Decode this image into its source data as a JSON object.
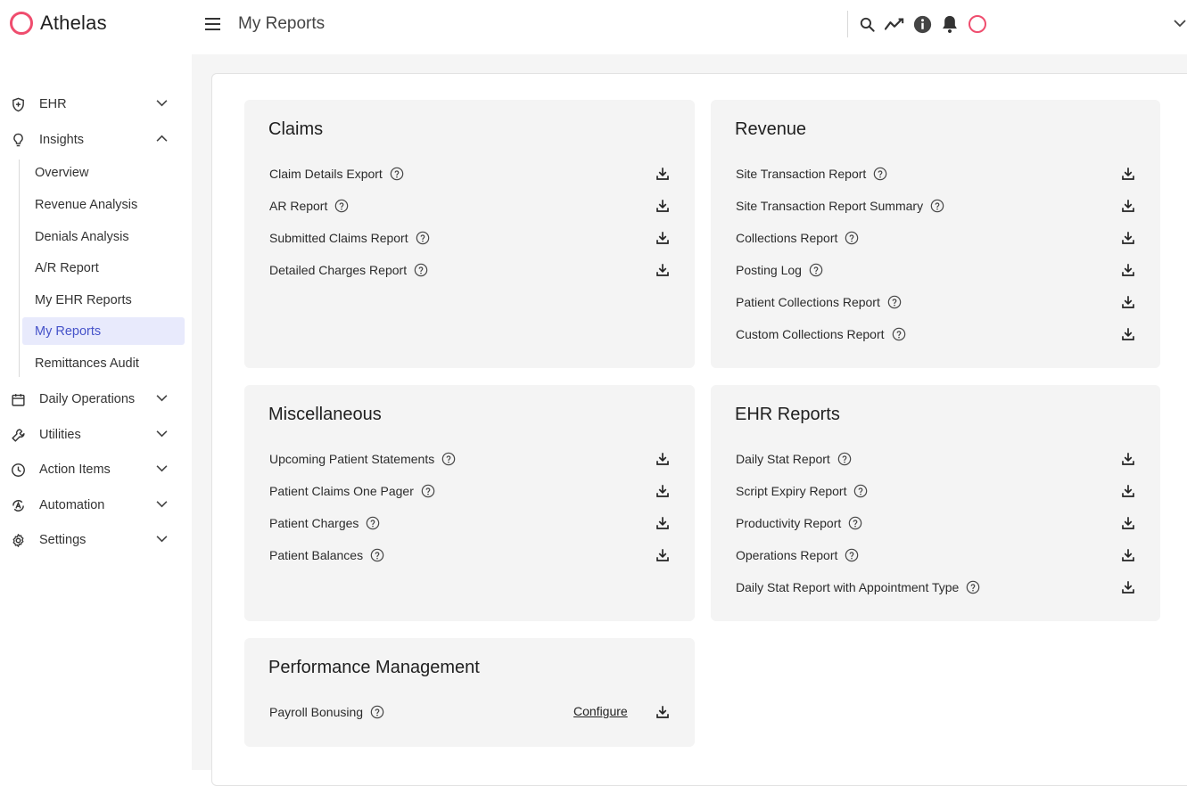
{
  "app": {
    "name": "Athelas",
    "brand_color": "#ef4d6e",
    "accent_color": "#4653c9"
  },
  "header": {
    "title": "My Reports"
  },
  "sidebar": {
    "items": [
      {
        "label": "EHR",
        "icon": "shield-plus-icon"
      },
      {
        "label": "Insights",
        "icon": "lightbulb-icon"
      },
      {
        "label": "Daily Operations",
        "icon": "calendar-icon"
      },
      {
        "label": "Utilities",
        "icon": "wrench-icon"
      },
      {
        "label": "Action Items",
        "icon": "clock-icon"
      },
      {
        "label": "Automation",
        "icon": "automation-icon"
      },
      {
        "label": "Settings",
        "icon": "gear-icon"
      }
    ],
    "insights_sub": [
      {
        "label": "Overview"
      },
      {
        "label": "Revenue Analysis"
      },
      {
        "label": "Denials Analysis"
      },
      {
        "label": "A/R Report"
      },
      {
        "label": "My EHR Reports"
      },
      {
        "label": "My Reports",
        "active": true
      },
      {
        "label": "Remittances Audit"
      }
    ]
  },
  "cards": {
    "claims": {
      "title": "Claims",
      "rows": [
        "Claim Details Export",
        "AR Report",
        "Submitted Claims Report",
        "Detailed Charges Report"
      ]
    },
    "revenue": {
      "title": "Revenue",
      "rows": [
        "Site Transaction Report",
        "Site Transaction Report Summary",
        "Collections Report",
        "Posting Log",
        "Patient Collections Report",
        "Custom Collections Report"
      ]
    },
    "misc": {
      "title": "Miscellaneous",
      "rows": [
        "Upcoming Patient Statements",
        "Patient Claims One Pager",
        "Patient Charges",
        "Patient Balances"
      ]
    },
    "ehr": {
      "title": "EHR Reports",
      "rows": [
        "Daily Stat Report",
        "Script Expiry Report",
        "Productivity Report",
        "Operations Report",
        "Daily Stat Report with Appointment Type"
      ]
    },
    "performance": {
      "title": "Performance Management",
      "rows": [
        "Payroll Bonusing"
      ],
      "configure_label": "Configure"
    }
  }
}
